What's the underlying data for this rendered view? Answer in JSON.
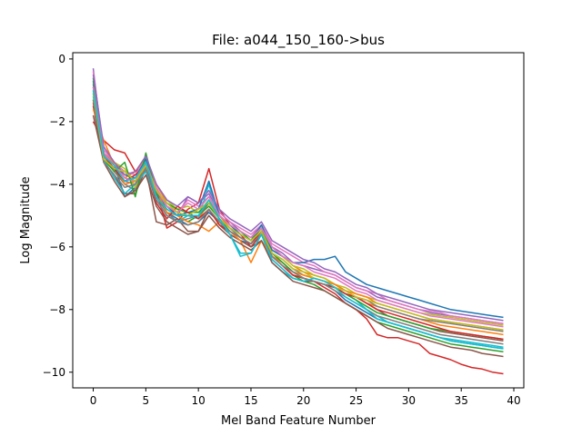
{
  "chart_data": {
    "type": "line",
    "title": "File: a044_150_160->bus",
    "xlabel": "Mel Band Feature Number",
    "ylabel": "Log Magnitude",
    "xlim": [
      -1.95,
      40.95
    ],
    "ylim": [
      -10.5,
      0.2
    ],
    "xticks": [
      0,
      5,
      10,
      15,
      20,
      25,
      30,
      35,
      40
    ],
    "yticks": [
      0,
      -2,
      -4,
      -6,
      -8,
      -10
    ],
    "xtick_labels": [
      "0",
      "5",
      "10",
      "15",
      "20",
      "25",
      "30",
      "35",
      "40"
    ],
    "ytick_labels": [
      "0",
      "−2",
      "−4",
      "−6",
      "−8",
      "−10"
    ],
    "grid": false,
    "legend": "none",
    "x": [
      0,
      1,
      2,
      3,
      4,
      5,
      6,
      7,
      8,
      9,
      10,
      11,
      12,
      13,
      14,
      15,
      16,
      17,
      18,
      19,
      20,
      21,
      22,
      23,
      24,
      25,
      26,
      27,
      28,
      29,
      30,
      31,
      32,
      33,
      34,
      35,
      36,
      37,
      38,
      39
    ],
    "series": [
      {
        "color": "#1f77b4",
        "values": [
          -0.9,
          -3.1,
          -3.4,
          -4.4,
          -4.1,
          -3.4,
          -4.4,
          -4.9,
          -5.1,
          -5.3,
          -5.2,
          -4.9,
          -5.2,
          -5.6,
          -5.8,
          -5.9,
          -5.5,
          -6.2,
          -6.5,
          -6.8,
          -7.0,
          -7.1,
          -7.2,
          -7.4,
          -7.7,
          -7.9,
          -8.1,
          -8.3,
          -8.4,
          -8.5,
          -8.6,
          -8.7,
          -8.8,
          -8.9,
          -9.0,
          -9.05,
          -9.1,
          -9.15,
          -9.2,
          -9.25
        ]
      },
      {
        "color": "#ff7f0e",
        "values": [
          -1.1,
          -3.0,
          -3.3,
          -3.8,
          -3.6,
          -3.2,
          -4.0,
          -4.6,
          -4.9,
          -5.0,
          -5.1,
          -4.6,
          -5.0,
          -5.4,
          -5.6,
          -5.8,
          -5.4,
          -6.0,
          -6.3,
          -6.6,
          -6.8,
          -6.9,
          -7.0,
          -7.2,
          -7.4,
          -7.6,
          -7.8,
          -7.9,
          -8.0,
          -8.1,
          -8.2,
          -8.3,
          -8.4,
          -8.5,
          -8.55,
          -8.6,
          -8.65,
          -8.7,
          -8.75,
          -8.8
        ]
      },
      {
        "color": "#2ca02c",
        "values": [
          -1.3,
          -3.2,
          -3.5,
          -4.0,
          -3.9,
          -3.3,
          -4.3,
          -4.8,
          -5.0,
          -5.2,
          -5.0,
          -4.7,
          -5.1,
          -5.5,
          -5.7,
          -5.9,
          -5.6,
          -6.3,
          -6.6,
          -6.9,
          -7.1,
          -7.2,
          -7.4,
          -7.6,
          -7.8,
          -8.0,
          -8.2,
          -8.4,
          -8.5,
          -8.6,
          -8.7,
          -8.8,
          -8.9,
          -9.0,
          -9.1,
          -9.15,
          -9.2,
          -9.25,
          -9.3,
          -9.35
        ]
      },
      {
        "color": "#d62728",
        "values": [
          -2.0,
          -2.6,
          -2.9,
          -3.0,
          -3.6,
          -3.4,
          -4.2,
          -5.4,
          -5.2,
          -4.8,
          -4.6,
          -3.5,
          -4.8,
          -5.3,
          -5.6,
          -6.0,
          -5.6,
          -6.3,
          -6.6,
          -6.9,
          -7.0,
          -7.1,
          -7.3,
          -7.5,
          -7.8,
          -8.0,
          -8.3,
          -8.8,
          -8.9,
          -8.9,
          -9.0,
          -9.1,
          -9.4,
          -9.5,
          -9.6,
          -9.75,
          -9.85,
          -9.9,
          -10.0,
          -10.05
        ]
      },
      {
        "color": "#9467bd",
        "values": [
          -0.3,
          -3.1,
          -3.5,
          -3.9,
          -4.0,
          -3.1,
          -4.2,
          -4.7,
          -5.0,
          -4.4,
          -4.6,
          -4.3,
          -4.9,
          -5.2,
          -5.5,
          -5.7,
          -5.3,
          -6.0,
          -6.2,
          -6.5,
          -6.6,
          -6.7,
          -6.8,
          -6.9,
          -7.1,
          -7.3,
          -7.4,
          -7.6,
          -7.7,
          -7.8,
          -7.9,
          -8.0,
          -8.1,
          -8.15,
          -8.2,
          -8.25,
          -8.3,
          -8.35,
          -8.4,
          -8.45
        ]
      },
      {
        "color": "#8c564b",
        "values": [
          -1.5,
          -3.3,
          -3.7,
          -4.3,
          -4.3,
          -3.5,
          -5.2,
          -5.3,
          -5.1,
          -5.5,
          -5.5,
          -4.8,
          -5.3,
          -5.6,
          -5.8,
          -6.0,
          -5.8,
          -6.4,
          -6.7,
          -7.0,
          -7.1,
          -7.1,
          -7.2,
          -7.3,
          -7.5,
          -7.6,
          -7.8,
          -8.0,
          -8.2,
          -8.3,
          -8.4,
          -8.5,
          -8.6,
          -8.7,
          -8.75,
          -8.8,
          -8.85,
          -8.9,
          -8.95,
          -9.0
        ]
      },
      {
        "color": "#e377c2",
        "values": [
          -0.4,
          -2.9,
          -3.3,
          -3.6,
          -3.7,
          -3.2,
          -4.1,
          -4.7,
          -4.9,
          -4.5,
          -4.7,
          -4.4,
          -4.9,
          -5.2,
          -5.4,
          -5.6,
          -5.3,
          -5.9,
          -6.1,
          -6.3,
          -6.5,
          -6.6,
          -6.8,
          -6.9,
          -7.1,
          -7.3,
          -7.4,
          -7.5,
          -7.7,
          -7.8,
          -7.9,
          -8.0,
          -8.05,
          -8.1,
          -8.2,
          -8.25,
          -8.3,
          -8.35,
          -8.4,
          -8.45
        ]
      },
      {
        "color": "#7f7f7f",
        "values": [
          -0.8,
          -3.0,
          -3.6,
          -4.0,
          -4.2,
          -3.4,
          -4.4,
          -4.9,
          -5.2,
          -5.1,
          -5.0,
          -4.6,
          -5.1,
          -5.4,
          -5.7,
          -5.9,
          -5.5,
          -6.2,
          -6.4,
          -6.7,
          -6.9,
          -7.0,
          -7.1,
          -7.2,
          -7.4,
          -7.6,
          -7.7,
          -7.9,
          -8.0,
          -8.1,
          -8.2,
          -8.3,
          -8.35,
          -8.4,
          -8.45,
          -8.5,
          -8.55,
          -8.6,
          -8.65,
          -8.7
        ]
      },
      {
        "color": "#bcbd22",
        "values": [
          -1.0,
          -3.1,
          -3.3,
          -3.5,
          -4.1,
          -3.3,
          -4.0,
          -4.5,
          -4.8,
          -4.7,
          -4.9,
          -4.5,
          -5.0,
          -5.3,
          -5.5,
          -5.7,
          -5.6,
          -6.1,
          -6.3,
          -6.6,
          -6.7,
          -6.9,
          -7.0,
          -7.2,
          -7.3,
          -7.5,
          -7.6,
          -7.7,
          -7.8,
          -7.9,
          -8.0,
          -8.1,
          -8.15,
          -8.2,
          -8.25,
          -8.3,
          -8.35,
          -8.4,
          -8.45,
          -8.5
        ]
      },
      {
        "color": "#17becf",
        "values": [
          -1.2,
          -3.2,
          -3.8,
          -4.3,
          -4.0,
          -3.6,
          -4.5,
          -5.0,
          -5.2,
          -5.0,
          -5.1,
          -4.0,
          -5.2,
          -5.6,
          -6.2,
          -6.2,
          -5.6,
          -6.5,
          -6.8,
          -7.0,
          -7.1,
          -7.0,
          -7.1,
          -7.3,
          -7.5,
          -7.7,
          -8.0,
          -8.2,
          -8.4,
          -8.5,
          -8.6,
          -8.7,
          -8.8,
          -8.9,
          -9.0,
          -9.05,
          -9.1,
          -9.15,
          -9.2,
          -9.25
        ]
      },
      {
        "color": "#1f77b4",
        "values": [
          -0.7,
          -3.0,
          -3.4,
          -3.7,
          -3.8,
          -3.2,
          -4.3,
          -4.7,
          -5.0,
          -4.9,
          -4.8,
          -3.9,
          -5.0,
          -5.3,
          -5.6,
          -5.8,
          -5.3,
          -6.1,
          -6.3,
          -6.5,
          -6.5,
          -6.4,
          -6.4,
          -6.3,
          -6.8,
          -7.0,
          -7.2,
          -7.3,
          -7.4,
          -7.5,
          -7.6,
          -7.7,
          -7.8,
          -7.9,
          -8.0,
          -8.05,
          -8.1,
          -8.15,
          -8.2,
          -8.25
        ]
      },
      {
        "color": "#ff7f0e",
        "values": [
          -1.6,
          -2.6,
          -3.4,
          -4.0,
          -3.9,
          -3.5,
          -4.2,
          -4.9,
          -5.0,
          -5.2,
          -5.3,
          -5.5,
          -5.2,
          -5.5,
          -5.8,
          -6.5,
          -5.8,
          -6.3,
          -6.5,
          -6.8,
          -6.9,
          -7.0,
          -7.1,
          -7.2,
          -7.4,
          -7.5,
          -7.6,
          -7.8,
          -7.9,
          -8.0,
          -8.1,
          -8.2,
          -8.3,
          -8.35,
          -8.4,
          -8.45,
          -8.5,
          -8.55,
          -8.6,
          -8.65
        ]
      },
      {
        "color": "#2ca02c",
        "values": [
          -0.6,
          -3.2,
          -3.6,
          -3.3,
          -4.4,
          -3.0,
          -4.3,
          -4.6,
          -4.8,
          -4.9,
          -4.9,
          -4.6,
          -5.0,
          -5.3,
          -5.5,
          -5.8,
          -5.4,
          -6.2,
          -6.5,
          -6.8,
          -7.0,
          -7.1,
          -7.2,
          -7.3,
          -7.5,
          -7.7,
          -7.9,
          -8.1,
          -8.2,
          -8.3,
          -8.4,
          -8.5,
          -8.6,
          -8.65,
          -8.7,
          -8.75,
          -8.8,
          -8.85,
          -8.9,
          -8.95
        ]
      },
      {
        "color": "#d62728",
        "values": [
          -1.4,
          -3.1,
          -3.5,
          -3.9,
          -3.7,
          -3.4,
          -4.6,
          -5.1,
          -4.7,
          -4.9,
          -5.1,
          -4.8,
          -5.3,
          -5.5,
          -5.7,
          -5.9,
          -5.5,
          -6.3,
          -6.6,
          -6.9,
          -7.0,
          -7.1,
          -7.2,
          -7.3,
          -7.5,
          -7.6,
          -7.8,
          -8.0,
          -8.1,
          -8.2,
          -8.3,
          -8.4,
          -8.5,
          -8.6,
          -8.7,
          -8.75,
          -8.8,
          -8.85,
          -8.9,
          -8.95
        ]
      },
      {
        "color": "#9467bd",
        "values": [
          -0.5,
          -2.8,
          -3.3,
          -3.7,
          -3.6,
          -3.1,
          -4.0,
          -4.5,
          -4.7,
          -4.4,
          -4.6,
          -4.2,
          -4.8,
          -5.1,
          -5.3,
          -5.5,
          -5.2,
          -5.8,
          -6.0,
          -6.2,
          -6.4,
          -6.5,
          -6.7,
          -6.8,
          -7.0,
          -7.2,
          -7.3,
          -7.5,
          -7.6,
          -7.7,
          -7.8,
          -7.9,
          -8.0,
          -8.05,
          -8.1,
          -8.15,
          -8.2,
          -8.25,
          -8.3,
          -8.35
        ]
      },
      {
        "color": "#8c564b",
        "values": [
          -1.8,
          -3.3,
          -3.9,
          -4.4,
          -4.2,
          -3.7,
          -4.7,
          -5.2,
          -5.4,
          -5.6,
          -5.5,
          -5.0,
          -5.4,
          -5.7,
          -5.9,
          -6.1,
          -5.8,
          -6.5,
          -6.8,
          -7.1,
          -7.2,
          -7.3,
          -7.4,
          -7.6,
          -7.8,
          -8.0,
          -8.2,
          -8.4,
          -8.6,
          -8.7,
          -8.8,
          -8.9,
          -9.0,
          -9.1,
          -9.2,
          -9.25,
          -9.3,
          -9.4,
          -9.45,
          -9.5
        ]
      },
      {
        "color": "#e377c2",
        "values": [
          -0.9,
          -3.0,
          -3.4,
          -3.8,
          -3.9,
          -3.3,
          -4.2,
          -4.7,
          -4.9,
          -4.6,
          -4.8,
          -4.4,
          -5.0,
          -5.3,
          -5.5,
          -5.7,
          -5.4,
          -6.0,
          -6.3,
          -6.5,
          -6.6,
          -6.8,
          -6.9,
          -7.0,
          -7.2,
          -7.4,
          -7.5,
          -7.7,
          -7.8,
          -7.9,
          -8.0,
          -8.1,
          -8.2,
          -8.25,
          -8.3,
          -8.35,
          -8.4,
          -8.45,
          -8.5,
          -8.55
        ]
      },
      {
        "color": "#7f7f7f",
        "values": [
          -1.3,
          -3.3,
          -3.7,
          -4.1,
          -4.0,
          -3.5,
          -4.5,
          -5.0,
          -5.2,
          -5.3,
          -5.2,
          -4.8,
          -5.2,
          -5.5,
          -5.7,
          -5.9,
          -5.6,
          -6.3,
          -6.6,
          -6.8,
          -7.0,
          -7.1,
          -7.2,
          -7.4,
          -7.6,
          -7.8,
          -8.0,
          -8.2,
          -8.3,
          -8.4,
          -8.5,
          -8.6,
          -8.7,
          -8.8,
          -8.85,
          -8.9,
          -8.95,
          -9.0,
          -9.05,
          -9.1
        ]
      },
      {
        "color": "#bcbd22",
        "values": [
          -1.1,
          -3.2,
          -3.5,
          -3.6,
          -3.9,
          -3.4,
          -4.2,
          -4.6,
          -4.9,
          -5.0,
          -4.8,
          -4.6,
          -5.1,
          -5.4,
          -5.6,
          -5.8,
          -5.5,
          -6.2,
          -6.4,
          -6.7,
          -6.8,
          -7.0,
          -7.1,
          -7.3,
          -7.4,
          -7.6,
          -7.7,
          -7.8,
          -7.9,
          -8.0,
          -8.1,
          -8.2,
          -8.3,
          -8.35,
          -8.4,
          -8.45,
          -8.5,
          -8.55,
          -8.6,
          -8.65
        ]
      },
      {
        "color": "#17becf",
        "values": [
          -1.0,
          -3.1,
          -3.4,
          -3.9,
          -3.8,
          -3.3,
          -4.4,
          -4.8,
          -5.0,
          -5.0,
          -5.0,
          -4.5,
          -5.1,
          -5.6,
          -6.3,
          -6.2,
          -5.6,
          -6.4,
          -6.7,
          -7.0,
          -7.1,
          -7.0,
          -7.1,
          -7.3,
          -7.6,
          -7.8,
          -8.0,
          -8.3,
          -8.4,
          -8.5,
          -8.6,
          -8.7,
          -8.8,
          -8.9,
          -8.95,
          -9.0,
          -9.05,
          -9.1,
          -9.15,
          -9.2
        ]
      }
    ]
  }
}
